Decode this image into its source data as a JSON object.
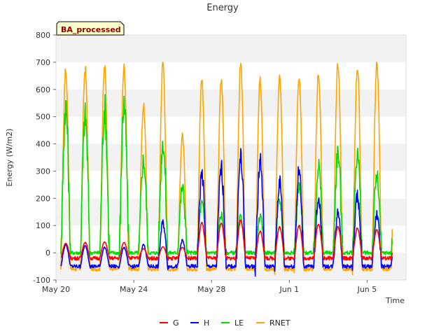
{
  "chart_data": {
    "type": "line",
    "title": "Energy",
    "xlabel": "Time",
    "ylabel": "Energy (W/m2)",
    "ylim": [
      -100,
      800
    ],
    "yticks": [
      -100,
      0,
      100,
      200,
      300,
      400,
      500,
      600,
      700,
      800
    ],
    "xlim": [
      0,
      18
    ],
    "xticks": [
      {
        "day": 0,
        "label": "May 20"
      },
      {
        "day": 4,
        "label": "May 24"
      },
      {
        "day": 8,
        "label": "May 28"
      },
      {
        "day": 12,
        "label": "Jun 1"
      },
      {
        "day": 16,
        "label": "Jun 5"
      }
    ],
    "badge": "BA_processed",
    "grid": "horizontal bands",
    "legend_position": "bottom",
    "days": [
      "May 20",
      "May 21",
      "May 22",
      "May 23",
      "May 24",
      "May 25",
      "May 26",
      "May 27",
      "May 28",
      "May 29",
      "May 30",
      "May 31",
      "Jun 1",
      "Jun 2",
      "Jun 3",
      "Jun 4",
      "Jun 5"
    ],
    "series": [
      {
        "name": "G",
        "color": "#ff0000",
        "night": -20,
        "daily_peak": [
          35,
          38,
          40,
          38,
          15,
          22,
          20,
          110,
          110,
          120,
          80,
          95,
          100,
          105,
          95,
          90,
          85
        ]
      },
      {
        "name": "H",
        "color": "#0000ff",
        "night": -50,
        "daily_peak": [
          30,
          25,
          20,
          20,
          30,
          110,
          45,
          290,
          310,
          350,
          340,
          260,
          300,
          200,
          150,
          210,
          140
        ]
      },
      {
        "name": "LE",
        "color": "#00dd00",
        "night": 0,
        "daily_peak": [
          540,
          500,
          530,
          550,
          340,
          410,
          240,
          180,
          140,
          130,
          130,
          190,
          240,
          320,
          370,
          370,
          280
        ]
      },
      {
        "name": "RNET",
        "color": "#ffa500",
        "night": -60,
        "daily_peak": [
          670,
          675,
          680,
          680,
          540,
          700,
          430,
          635,
          635,
          690,
          630,
          640,
          655,
          660,
          695,
          685,
          690
        ]
      }
    ]
  }
}
